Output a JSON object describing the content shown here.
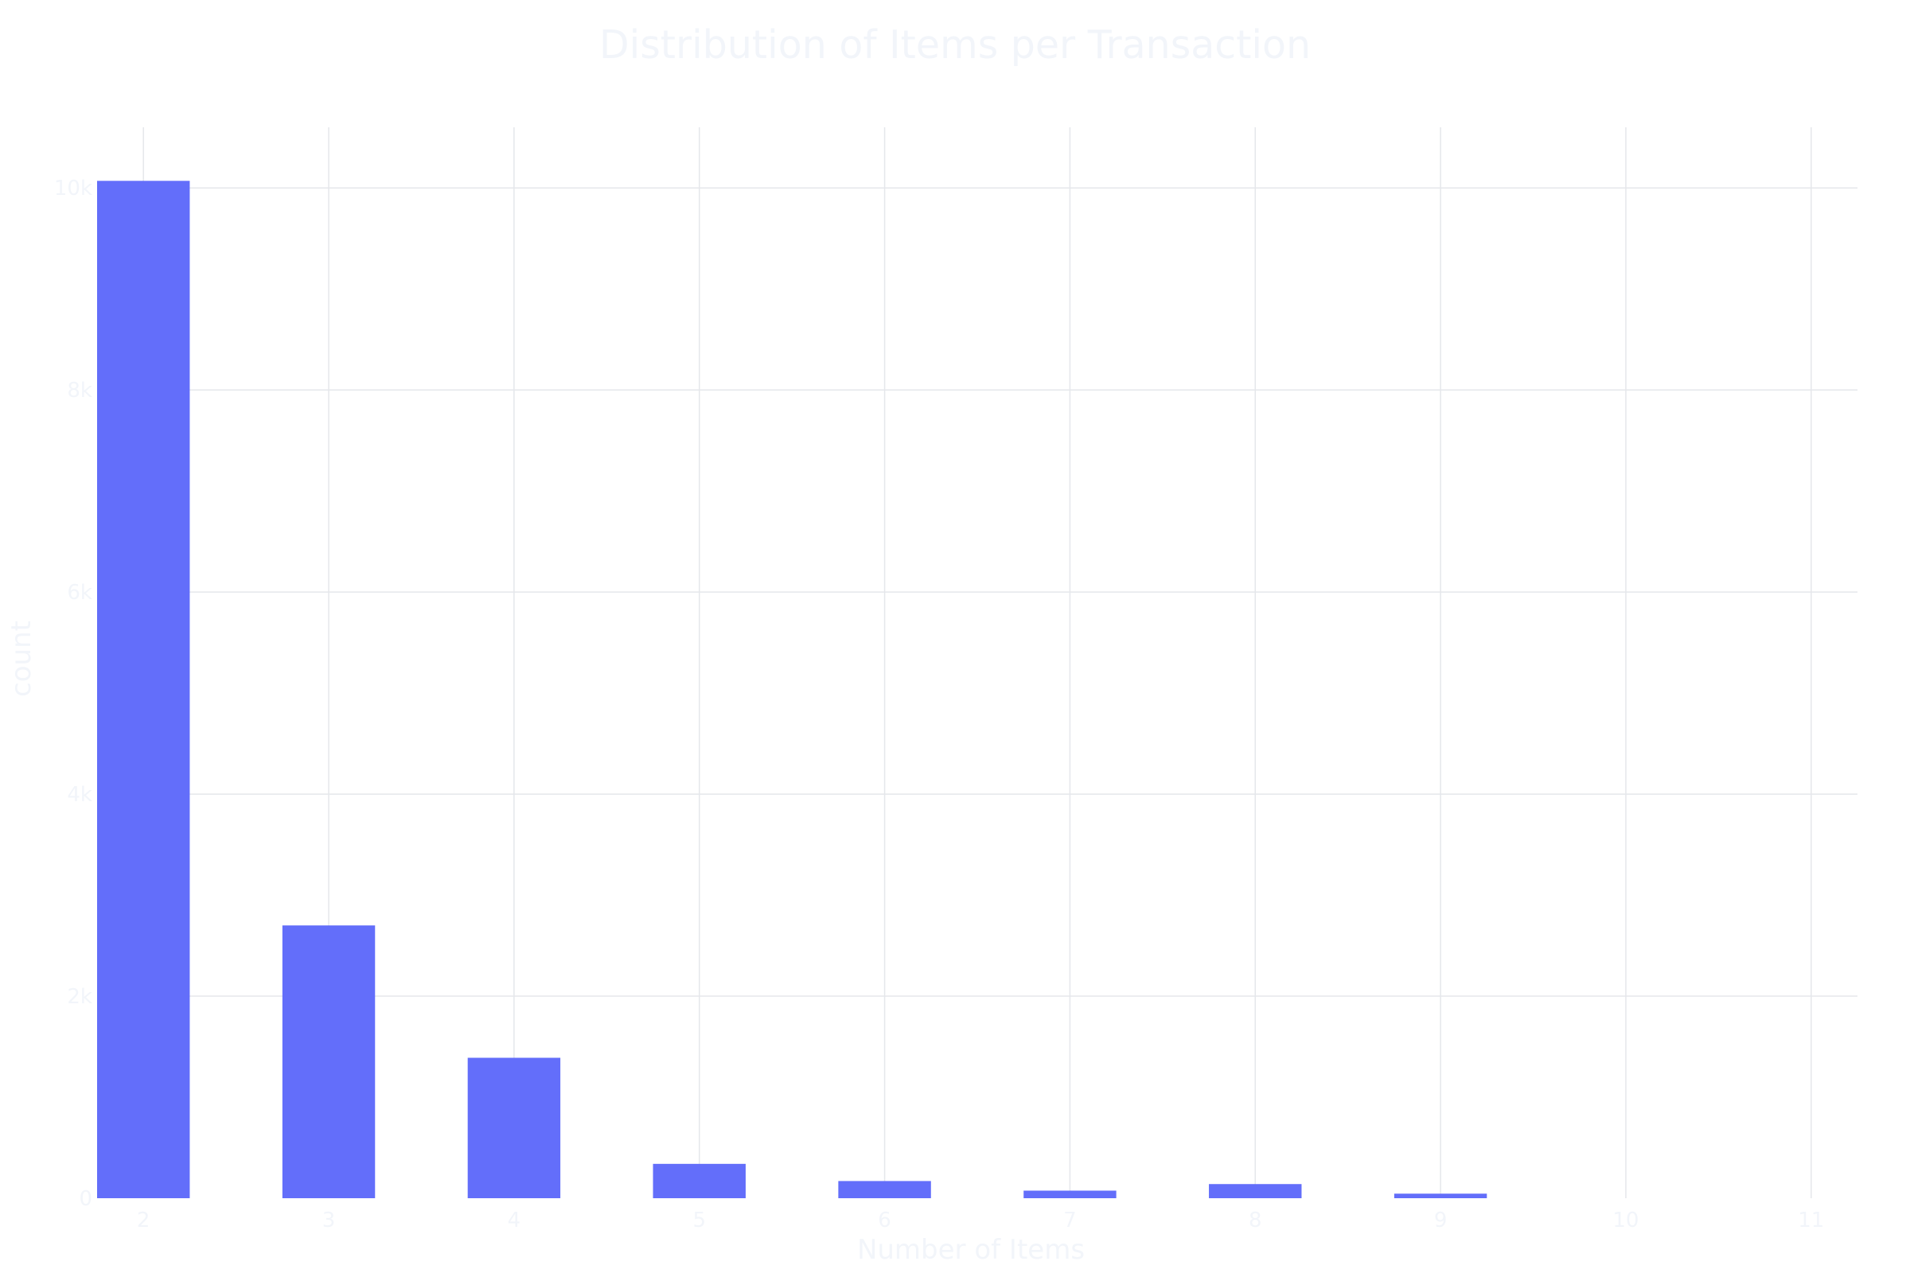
{
  "chart_data": {
    "type": "bar",
    "title": "Distribution of Items per Transaction",
    "xlabel": "Number of Items",
    "ylabel": "count",
    "categories": [
      2,
      3,
      4,
      5,
      6,
      7,
      8,
      9,
      10,
      11
    ],
    "values": [
      10070,
      2700,
      1390,
      340,
      170,
      75,
      140,
      45,
      0,
      0
    ],
    "x_tick_labels": [
      "2",
      "3",
      "4",
      "5",
      "6",
      "7",
      "8",
      "9",
      "10",
      "11"
    ],
    "y_tick_values": [
      0,
      2000,
      4000,
      6000,
      8000,
      10000
    ],
    "y_tick_labels": [
      "0",
      "2k",
      "4k",
      "6k",
      "8k",
      "10k"
    ],
    "xlim": [
      1.75,
      11.25
    ],
    "ylim": [
      0,
      10600
    ],
    "grid": true,
    "bar_color": "#636efa",
    "grid_color": "#e5e7eb",
    "text_color": "#f2f5fa"
  }
}
